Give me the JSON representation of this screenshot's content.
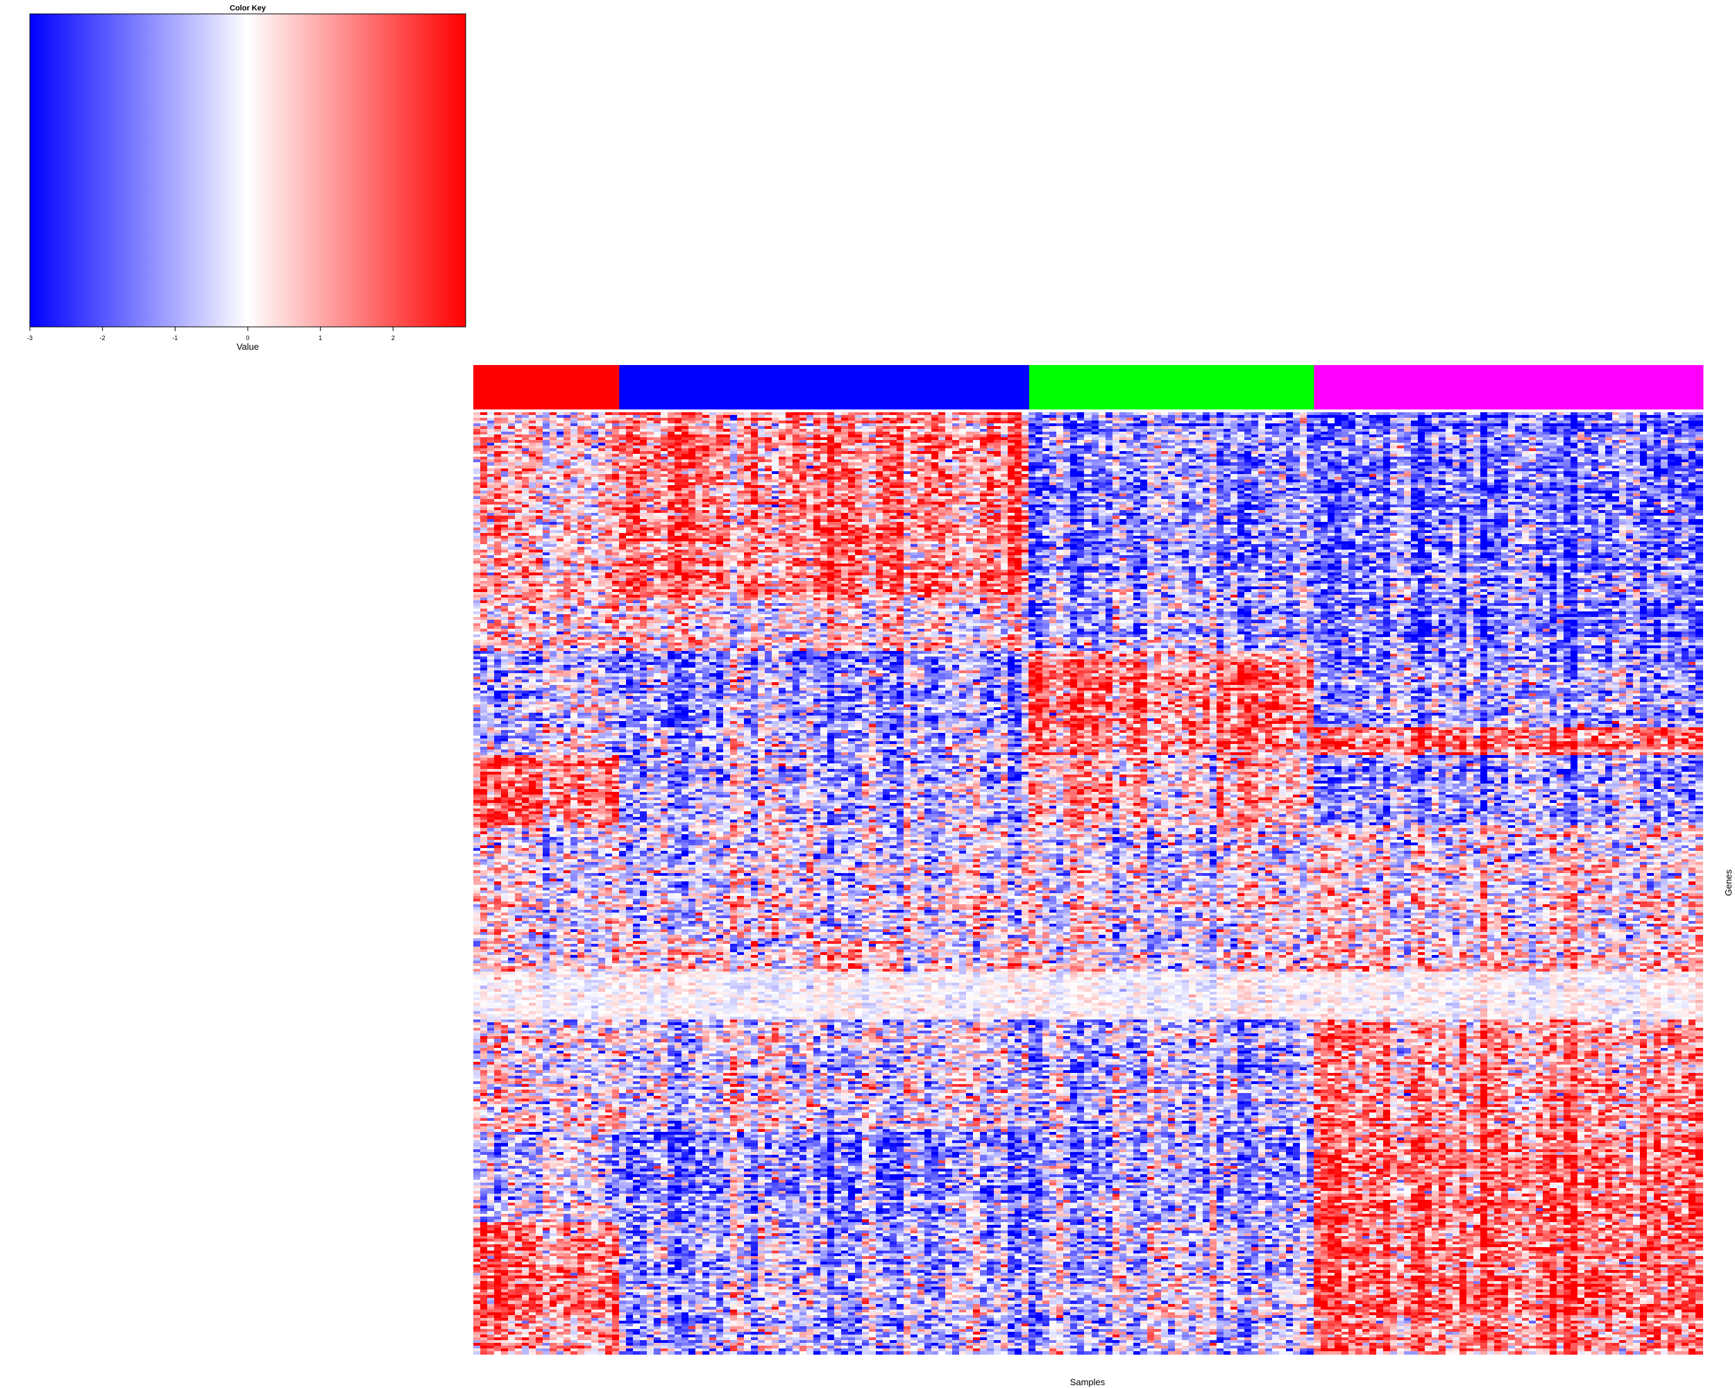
{
  "chart_data": {
    "type": "heatmap",
    "xlabel": "Samples",
    "ylabel": "Genes",
    "value_range": [
      -3,
      3
    ],
    "color_scale": {
      "low": "#0000ff",
      "mid": "#ffffff",
      "high": "#ff0000"
    },
    "color_key": {
      "title": "Color Key",
      "label": "Value",
      "ticks": [
        "-3",
        "-2",
        "-1",
        "0",
        "1",
        "2"
      ]
    },
    "sample_groups": [
      {
        "color": "#ff0000",
        "sample_count": 21
      },
      {
        "color": "#0000ff",
        "sample_count": 59
      },
      {
        "color": "#00ff00",
        "sample_count": 41
      },
      {
        "color": "#ff00ff",
        "sample_count": 56
      }
    ],
    "gene_blocks": [
      {
        "rows": 65,
        "group_means": [
          0.4,
          0.9,
          -0.8,
          -0.9
        ]
      },
      {
        "rows": 20,
        "group_means": [
          0.4,
          0.3,
          -0.5,
          -0.8
        ]
      },
      {
        "rows": 27,
        "group_means": [
          -0.5,
          -0.7,
          1.0,
          -0.5
        ]
      },
      {
        "rows": 10,
        "group_means": [
          -0.4,
          -0.6,
          0.7,
          0.8
        ]
      },
      {
        "rows": 25,
        "group_means": [
          1.2,
          -0.4,
          0.5,
          -0.5
        ]
      },
      {
        "rows": 40,
        "group_means": [
          0.1,
          -0.1,
          0.0,
          0.1
        ]
      },
      {
        "rows": 12,
        "group_means": [
          0.2,
          0.3,
          0.1,
          0.3
        ]
      },
      {
        "rows": 17,
        "group_means": [
          0.0,
          0.0,
          0.0,
          0.0
        ]
      },
      {
        "rows": 40,
        "group_means": [
          0.1,
          -0.2,
          -0.5,
          0.6
        ]
      },
      {
        "rows": 32,
        "group_means": [
          -0.3,
          -0.8,
          -0.6,
          1.0
        ]
      },
      {
        "rows": 35,
        "group_means": [
          1.0,
          -0.6,
          -0.4,
          0.9
        ]
      },
      {
        "rows": 12,
        "group_means": [
          0.6,
          -0.6,
          -0.5,
          0.7
        ]
      }
    ]
  }
}
